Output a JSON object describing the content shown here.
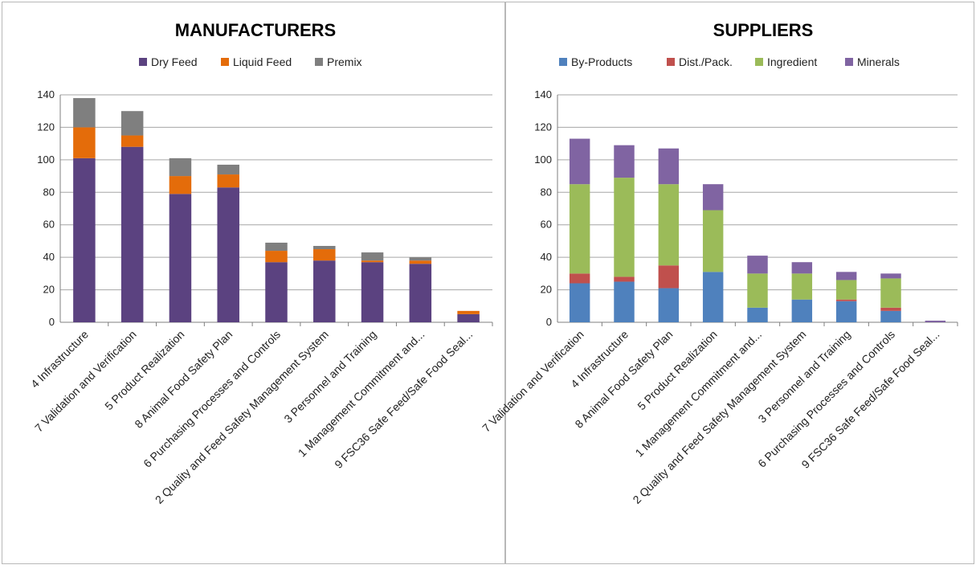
{
  "chart_data": [
    {
      "type": "bar",
      "stacked": true,
      "title": "MANUFACTURERS",
      "legend_position": "top",
      "grid": true,
      "ylim": [
        0,
        140
      ],
      "yticks": [
        0,
        20,
        40,
        60,
        80,
        100,
        120,
        140
      ],
      "categories": [
        "4 Infrastructure",
        "7 Validation and Verification",
        "5 Product Realization",
        "8 Animal Food Safety Plan",
        "6 Purchasing Processes and Controls",
        "2 Quality and Feed Safety Management System",
        "3 Personnel and Training",
        "1 Management Commitment and...",
        "9 FSC36 Safe Feed/Safe Food Seal..."
      ],
      "series": [
        {
          "name": "Dry Feed",
          "color": "#5b4280",
          "values": [
            101,
            108,
            79,
            83,
            37,
            38,
            37,
            36,
            5
          ]
        },
        {
          "name": "Liquid Feed",
          "color": "#e46c0a",
          "values": [
            19,
            7,
            11,
            8,
            7,
            7,
            1,
            2,
            2
          ]
        },
        {
          "name": "Premix",
          "color": "#7f7f7f",
          "values": [
            18,
            15,
            11,
            6,
            5,
            2,
            5,
            2,
            0
          ]
        }
      ]
    },
    {
      "type": "bar",
      "stacked": true,
      "title": "SUPPLIERS",
      "legend_position": "top",
      "grid": true,
      "ylim": [
        0,
        140
      ],
      "yticks": [
        0,
        20,
        40,
        60,
        80,
        100,
        120,
        140
      ],
      "categories": [
        "7 Validation and Verification",
        "4 Infrastructure",
        "8 Animal Food Safety Plan",
        "5 Product Realization",
        "1 Management Commitment and...",
        "2 Quality and Feed Safety Management System",
        "3 Personnel and Training",
        "6 Purchasing Processes and Controls",
        "9 FSC36 Safe Feed/Safe Food Seal..."
      ],
      "series": [
        {
          "name": "By-Products",
          "color": "#4f81bd",
          "values": [
            24,
            25,
            21,
            31,
            9,
            14,
            13,
            7,
            0
          ]
        },
        {
          "name": "Dist./Pack.",
          "color": "#c0504d",
          "values": [
            6,
            3,
            14,
            0,
            0,
            0,
            1,
            2,
            0
          ]
        },
        {
          "name": "Ingredient",
          "color": "#9bbb59",
          "values": [
            55,
            61,
            50,
            38,
            21,
            16,
            12,
            18,
            0
          ]
        },
        {
          "name": "Minerals",
          "color": "#8064a2",
          "values": [
            28,
            20,
            22,
            16,
            11,
            7,
            5,
            3,
            1
          ]
        }
      ]
    }
  ]
}
